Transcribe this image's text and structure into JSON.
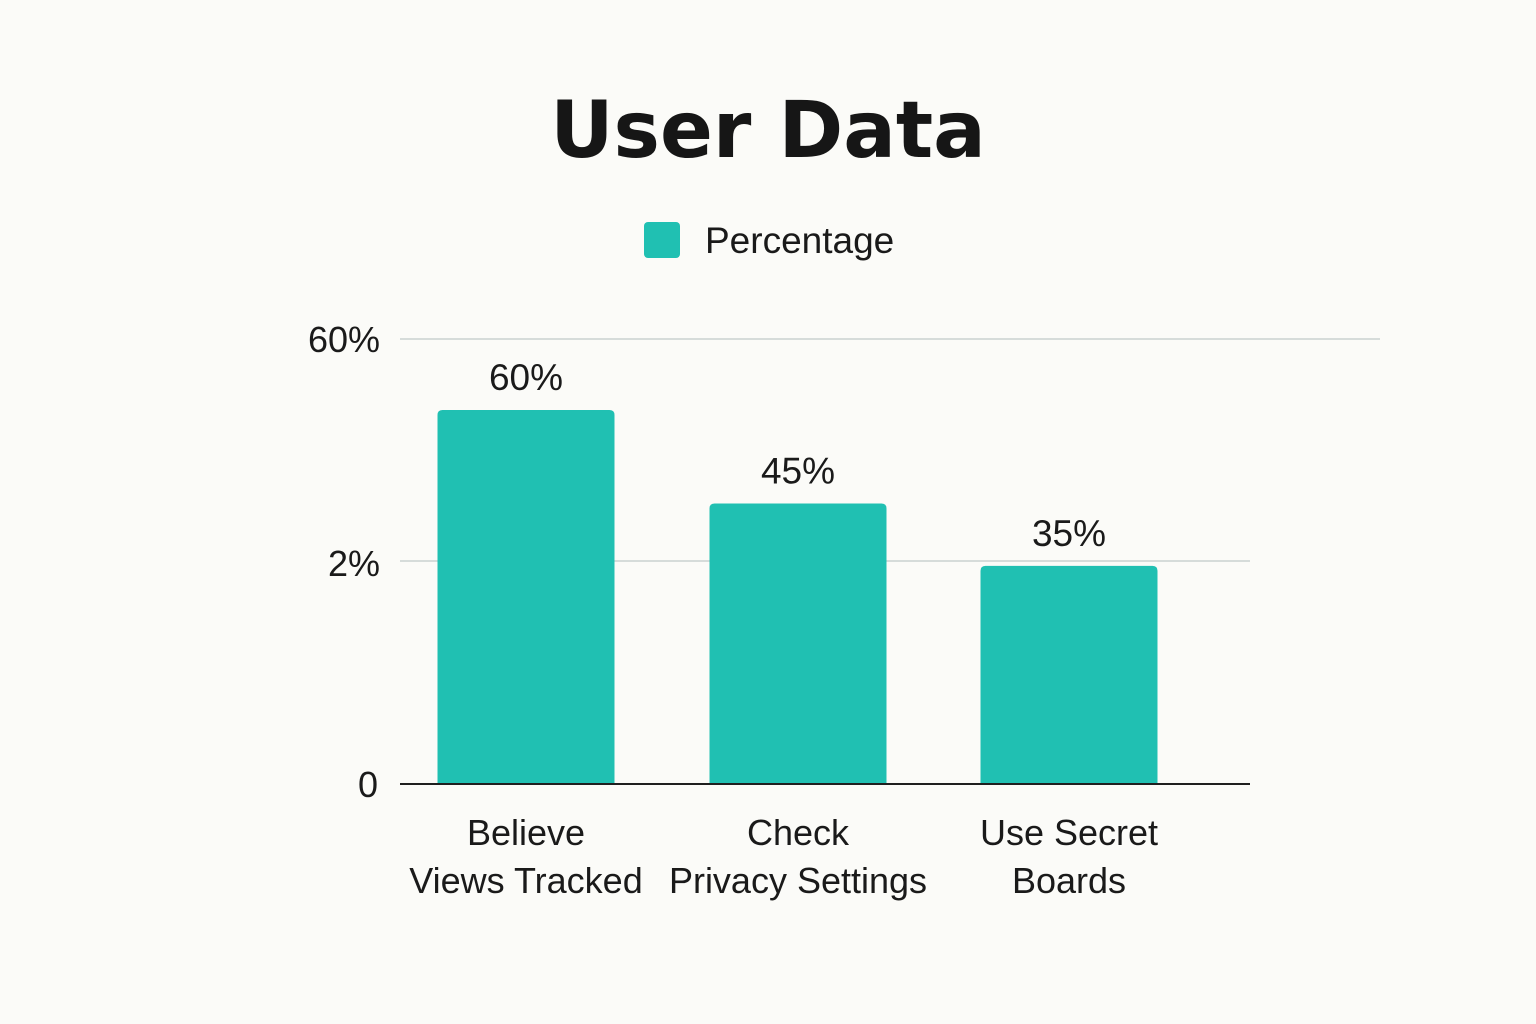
{
  "chart_data": {
    "type": "bar",
    "title": "User Data",
    "xlabel": "",
    "ylabel": "",
    "legend": {
      "placement": "top-center",
      "entries": [
        {
          "name": "Percentage",
          "color": "#20c0b2"
        }
      ]
    },
    "y_ticks": [
      "0",
      "2%",
      "60%"
    ],
    "grid": true,
    "categories": [
      [
        "Believe",
        "Views Tracked"
      ],
      [
        "Check",
        "Privacy Settings"
      ],
      [
        "Use Secret",
        "Boards"
      ]
    ],
    "series": [
      {
        "name": "Percentage",
        "color": "#20c0b2",
        "values": [
          60,
          45,
          35
        ],
        "labels": [
          "60%",
          "45%",
          "35%"
        ]
      }
    ]
  }
}
